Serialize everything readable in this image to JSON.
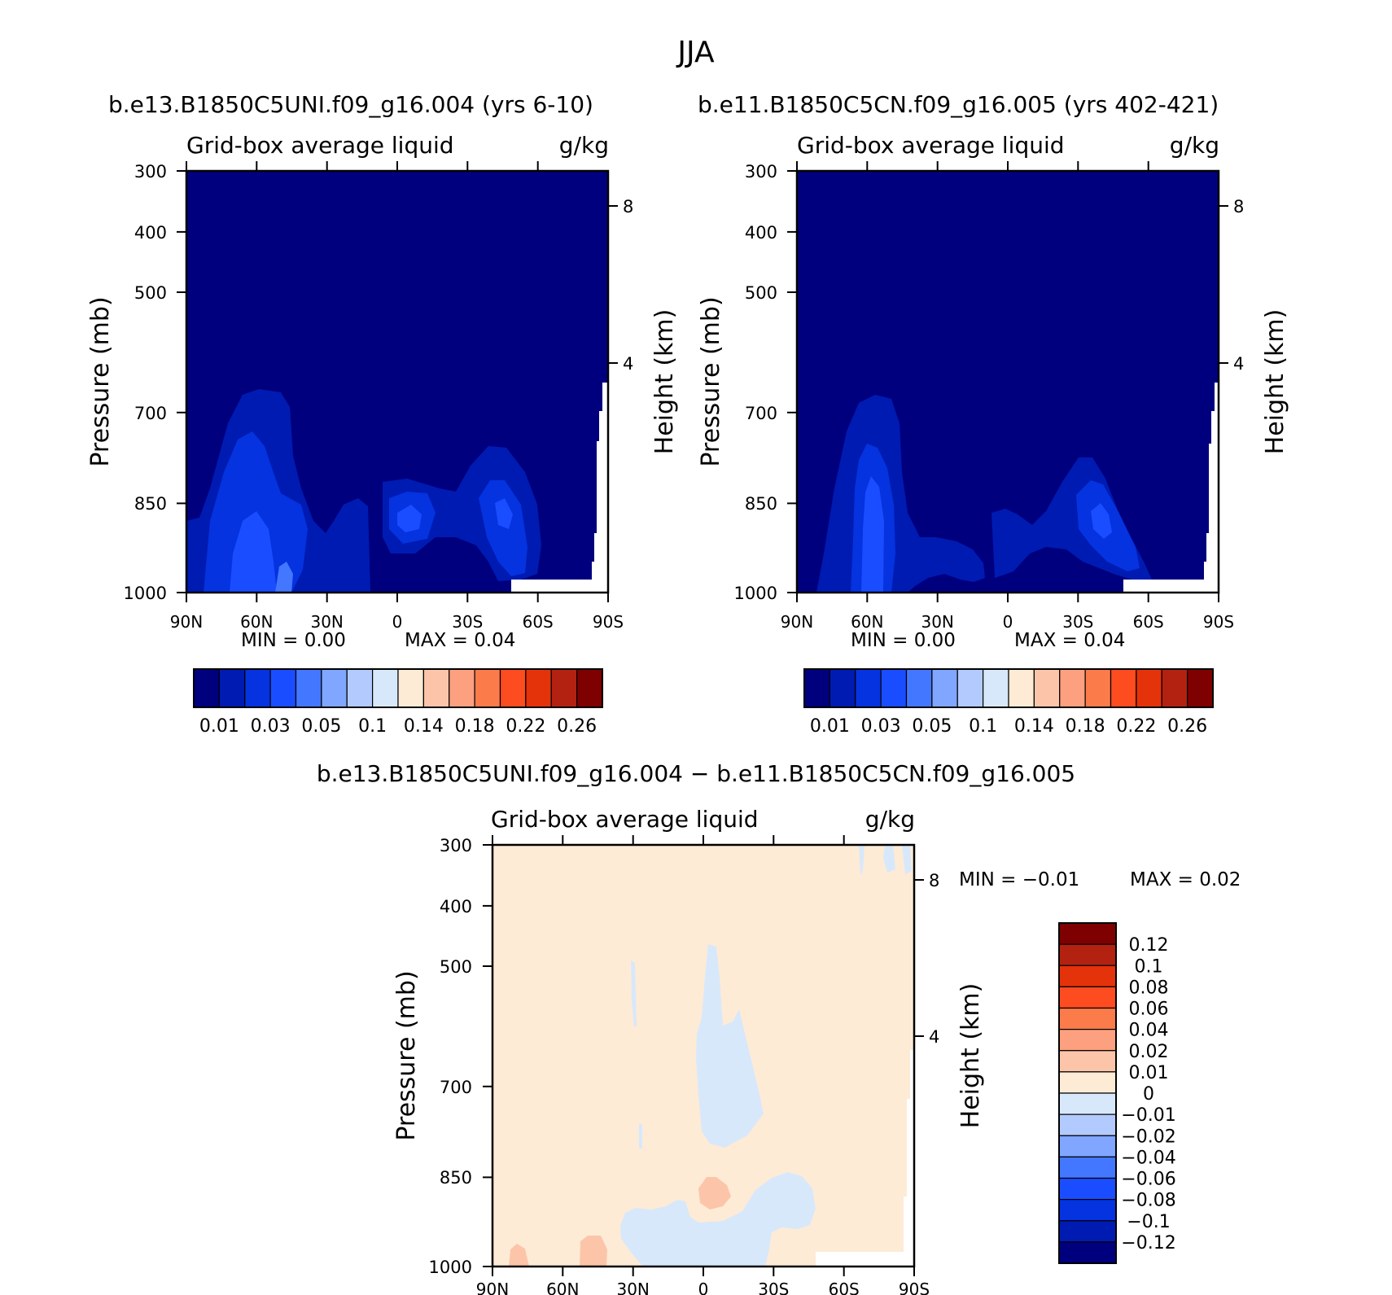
{
  "figure": {
    "title": "JJA"
  },
  "panels": [
    {
      "case_title": "b.e13.B1850C5UNI.f09_g16.004 (yrs 6-10)",
      "field_label": "Grid-box average liquid",
      "units": "g/kg",
      "min_text": "MIN =     0.00",
      "max_text": "MAX =     0.04"
    },
    {
      "case_title": "b.e11.B1850C5CN.f09_g16.005 (yrs 402-421)",
      "field_label": "Grid-box average liquid",
      "units": "g/kg",
      "min_text": "MIN =     0.00",
      "max_text": "MAX =     0.04"
    },
    {
      "case_title": "b.e13.B1850C5UNI.f09_g16.004 − b.e11.B1850C5CN.f09_g16.005",
      "field_label": "Grid-box average liquid",
      "units": "g/kg",
      "min_text": "MIN =    −0.01",
      "max_text": "MAX =     0.02"
    }
  ],
  "chart_data": [
    {
      "type": "heatmap",
      "panel": "top-left",
      "title": "b.e13.B1850C5UNI.f09_g16.004 (yrs 6-10)",
      "xlabel": "",
      "ylabel": "Pressure (mb)",
      "y2label": "Height (km)",
      "x_ticks": [
        "90N",
        "60N",
        "30N",
        "0",
        "30S",
        "60S",
        "90S"
      ],
      "y_ticks": [
        300,
        400,
        500,
        700,
        850,
        1000
      ],
      "y2_ticks": [
        8,
        4
      ],
      "ylim": [
        1000,
        300
      ],
      "min": 0.0,
      "max": 0.04,
      "colorbar": {
        "orientation": "horizontal",
        "labels": [
          "0.01",
          "0.03",
          "0.05",
          "0.1",
          "0.14",
          "0.18",
          "0.22",
          "0.26"
        ],
        "levels": [
          0.01,
          0.02,
          0.03,
          0.04,
          0.05,
          0.07,
          0.1,
          0.12,
          0.14,
          0.16,
          0.18,
          0.2,
          0.22,
          0.24,
          0.26
        ],
        "colors": [
          "#00007f",
          "#001bb2",
          "#0433df",
          "#1a4dff",
          "#4477ff",
          "#80a6ff",
          "#b3caff",
          "#d8e8fb",
          "#feebd6",
          "#fcc5a9",
          "#fca080",
          "#fc7b4b",
          "#fc4c20",
          "#e4320a",
          "#b32210",
          "#7f0000"
        ]
      }
    },
    {
      "type": "heatmap",
      "panel": "top-right",
      "title": "b.e11.B1850C5CN.f09_g16.005 (yrs 402-421)",
      "xlabel": "",
      "ylabel": "Pressure (mb)",
      "y2label": "Height (km)",
      "x_ticks": [
        "90N",
        "60N",
        "30N",
        "0",
        "30S",
        "60S",
        "90S"
      ],
      "y_ticks": [
        300,
        400,
        500,
        700,
        850,
        1000
      ],
      "y2_ticks": [
        8,
        4
      ],
      "ylim": [
        1000,
        300
      ],
      "min": 0.0,
      "max": 0.04,
      "colorbar": {
        "orientation": "horizontal",
        "labels": [
          "0.01",
          "0.03",
          "0.05",
          "0.1",
          "0.14",
          "0.18",
          "0.22",
          "0.26"
        ]
      }
    },
    {
      "type": "heatmap",
      "panel": "bottom",
      "title": "b.e13.B1850C5UNI.f09_g16.004 − b.e11.B1850C5CN.f09_g16.005",
      "xlabel": "",
      "ylabel": "Pressure (mb)",
      "y2label": "Height (km)",
      "x_ticks": [
        "90N",
        "60N",
        "30N",
        "0",
        "30S",
        "60S",
        "90S"
      ],
      "y_ticks": [
        300,
        400,
        500,
        700,
        850,
        1000
      ],
      "y2_ticks": [
        8,
        4
      ],
      "ylim": [
        1000,
        300
      ],
      "min": -0.01,
      "max": 0.02,
      "colorbar": {
        "orientation": "vertical",
        "labels": [
          "0.12",
          "0.1",
          "0.08",
          "0.06",
          "0.04",
          "0.02",
          "0.01",
          "0",
          "−0.01",
          "−0.02",
          "−0.04",
          "−0.06",
          "−0.08",
          "−0.1",
          "−0.12"
        ],
        "colors": [
          "#7f0000",
          "#b32210",
          "#e4320a",
          "#fc4c20",
          "#fc7b4b",
          "#fca080",
          "#fcc5a9",
          "#feebd6",
          "#d8e8fb",
          "#b3caff",
          "#80a6ff",
          "#4477ff",
          "#1a4dff",
          "#0433df",
          "#001bb2",
          "#00007f"
        ]
      }
    }
  ]
}
